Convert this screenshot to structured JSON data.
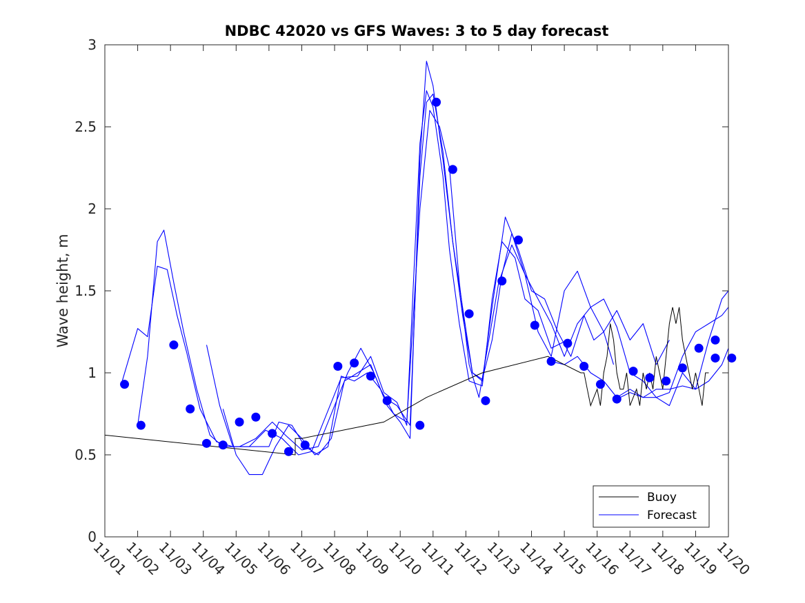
{
  "chart_data": {
    "type": "line",
    "title": "NDBC 42020 vs GFS Waves: 3 to 5 day forecast",
    "xlabel": "",
    "ylabel": "Wave height, m",
    "xlim": [
      0,
      19
    ],
    "ylim": [
      0,
      3
    ],
    "x_tick_values": [
      0,
      1,
      2,
      3,
      4,
      5,
      6,
      7,
      8,
      9,
      10,
      11,
      12,
      13,
      14,
      15,
      16,
      17,
      18,
      19
    ],
    "x_tick_labels": [
      "11/01",
      "11/02",
      "11/03",
      "11/04",
      "11/05",
      "11/06",
      "11/07",
      "11/08",
      "11/09",
      "11/10",
      "11/11",
      "11/12",
      "11/13",
      "11/14",
      "11/15",
      "11/16",
      "11/17",
      "11/18",
      "11/19",
      "11/20"
    ],
    "y_tick_values": [
      0,
      0.5,
      1,
      1.5,
      2,
      2.5,
      3
    ],
    "y_tick_labels": [
      "0",
      "0.5",
      "1",
      "1.5",
      "2",
      "2.5",
      "3"
    ],
    "legend": {
      "position": "bottom-right",
      "entries": [
        {
          "label": "Buoy",
          "color": "#000000"
        },
        {
          "label": "Forecast",
          "color": "#0000ff"
        }
      ]
    },
    "colors": {
      "buoy": "#000000",
      "forecast": "#0000ff",
      "axes": "#262626"
    },
    "buoy": {
      "x": [
        0,
        5.8,
        5.8,
        6.0,
        6.0,
        7.5,
        8.5,
        9.8,
        11.5,
        13.5,
        14.5,
        14.6,
        14.7,
        14.8,
        14.9,
        15.0,
        15.1,
        15.2,
        15.3,
        15.4,
        15.5,
        15.6,
        15.7,
        15.8,
        15.9,
        16.0,
        16.1,
        16.2,
        16.3,
        16.4,
        16.5,
        16.6,
        16.7,
        16.8,
        16.9,
        17.0,
        17.1,
        17.2,
        17.3,
        17.4,
        17.5,
        17.6,
        17.7,
        17.8,
        17.9,
        18.0,
        18.1,
        18.2,
        18.3,
        18.4
      ],
      "y": [
        0.62,
        0.5,
        0.6,
        0.6,
        0.6,
        0.66,
        0.7,
        0.85,
        1.0,
        1.1,
        1.0,
        1.0,
        0.9,
        0.8,
        0.85,
        0.9,
        0.8,
        1.0,
        1.1,
        1.3,
        1.2,
        1.0,
        0.9,
        0.9,
        1.0,
        0.8,
        0.85,
        0.9,
        0.8,
        1.0,
        0.9,
        1.0,
        0.9,
        1.1,
        1.0,
        0.9,
        1.1,
        1.3,
        1.4,
        1.3,
        1.4,
        1.2,
        1.1,
        1.0,
        0.9,
        1.0,
        0.9,
        0.8,
        1.0,
        1.0
      ]
    },
    "forecast_series": [
      {
        "name": "forecast-1",
        "x": [
          0.5,
          1.0,
          1.3,
          1.6,
          1.9,
          2.2,
          2.5,
          2.9,
          3.4,
          3.9,
          4.4,
          4.9,
          5.4,
          5.9,
          6.3,
          6.7,
          7.2,
          7.7,
          8.1,
          8.5,
          8.9,
          9.2,
          9.6,
          9.8,
          10.0,
          10.3,
          10.5,
          10.8,
          11.1,
          11.5,
          11.8,
          12.1,
          12.5,
          12.8,
          13.2,
          13.6,
          14.1
        ],
        "y": [
          0.93,
          1.27,
          1.22,
          1.65,
          1.63,
          1.35,
          1.12,
          0.78,
          0.58,
          0.55,
          0.55,
          0.65,
          0.6,
          0.5,
          0.52,
          0.72,
          0.97,
          0.98,
          1.1,
          0.88,
          0.82,
          0.68,
          2.4,
          2.72,
          2.62,
          2.2,
          1.75,
          1.3,
          0.95,
          0.92,
          1.45,
          1.8,
          1.7,
          1.45,
          1.38,
          1.15,
          1.2
        ]
      },
      {
        "name": "forecast-2",
        "x": [
          1.0,
          1.3,
          1.6,
          1.8,
          2.1,
          2.4,
          2.8,
          3.2,
          3.6,
          4.1,
          4.6,
          5.1,
          5.5,
          6.0,
          6.5,
          7.0,
          7.4,
          7.8,
          8.2,
          8.6,
          9.0,
          9.3,
          9.6,
          9.8,
          10.0,
          10.3,
          10.6,
          10.9,
          11.2,
          11.5,
          11.8,
          12.2,
          12.6,
          13.0,
          13.4,
          13.8,
          14.2,
          14.6,
          14.9,
          15.2,
          15.5
        ],
        "y": [
          0.68,
          1.1,
          1.8,
          1.87,
          1.55,
          1.25,
          0.9,
          0.62,
          0.55,
          0.55,
          0.6,
          0.7,
          0.62,
          0.53,
          0.55,
          0.8,
          1.0,
          1.15,
          1.0,
          0.8,
          0.7,
          0.6,
          2.3,
          2.9,
          2.75,
          2.3,
          1.8,
          1.35,
          1.0,
          0.95,
          1.4,
          1.95,
          1.75,
          1.5,
          1.45,
          1.25,
          1.1,
          1.35,
          1.2,
          1.25,
          1.05
        ]
      },
      {
        "name": "forecast-3",
        "x": [
          3.1,
          3.5,
          3.9,
          4.3,
          4.7,
          5.0,
          5.3,
          5.7,
          6.1,
          6.5,
          6.9,
          7.3,
          7.7,
          8.1,
          8.5,
          8.9,
          9.3,
          9.6,
          9.8,
          10.0,
          10.3,
          10.6,
          10.9,
          11.2,
          11.5,
          11.8,
          12.1,
          12.4,
          12.8,
          13.2,
          13.6,
          14.0,
          14.4,
          14.8,
          15.2,
          15.6,
          16.0,
          16.4,
          16.8,
          17.2
        ],
        "y": [
          1.17,
          0.8,
          0.55,
          0.55,
          0.55,
          0.55,
          0.7,
          0.68,
          0.55,
          0.5,
          0.6,
          0.95,
          1.0,
          1.05,
          0.85,
          0.8,
          0.68,
          2.2,
          2.65,
          2.7,
          2.35,
          1.8,
          1.4,
          1.0,
          0.96,
          1.2,
          1.6,
          1.85,
          1.6,
          1.45,
          1.3,
          1.1,
          1.3,
          1.4,
          1.25,
          1.38,
          1.2,
          1.3,
          1.05,
          1.2
        ]
      },
      {
        "name": "forecast-4",
        "x": [
          3.6,
          4.0,
          4.4,
          4.8,
          5.2,
          5.6,
          6.0,
          6.4,
          6.8,
          7.2,
          7.6,
          8.0,
          8.4,
          8.8,
          9.2,
          9.6,
          9.9,
          10.2,
          10.5,
          10.8,
          11.1,
          11.4,
          11.7,
          12.0,
          12.4,
          12.8,
          13.2,
          13.6,
          14.0,
          14.4,
          14.8,
          15.2,
          15.6,
          16.0,
          16.4,
          16.8,
          17.2,
          17.6,
          18.0,
          18.4,
          18.8,
          19.0
        ],
        "y": [
          0.78,
          0.5,
          0.38,
          0.38,
          0.55,
          0.68,
          0.6,
          0.5,
          0.55,
          0.98,
          0.95,
          1.0,
          0.9,
          0.75,
          0.7,
          2.0,
          2.6,
          2.5,
          2.25,
          1.55,
          1.05,
          0.85,
          1.2,
          1.55,
          1.78,
          1.6,
          1.25,
          1.1,
          1.5,
          1.62,
          1.4,
          1.45,
          1.28,
          1.0,
          0.95,
          0.85,
          0.8,
          1.0,
          0.9,
          1.2,
          1.45,
          1.5
        ]
      },
      {
        "name": "forecast-5",
        "x": [
          15.6,
          16.0,
          16.4,
          16.8,
          17.2,
          17.6,
          18.0,
          18.4,
          18.8,
          19.0
        ],
        "y": [
          0.84,
          0.88,
          0.85,
          0.9,
          0.9,
          0.92,
          0.9,
          0.95,
          1.05,
          1.15
        ]
      },
      {
        "name": "forecast-6",
        "x": [
          13.6,
          14.0,
          14.4,
          14.8,
          15.2,
          15.6,
          16.0,
          16.4,
          16.8,
          17.2,
          17.6,
          18.0,
          18.4,
          18.8,
          19.0
        ],
        "y": [
          1.07,
          1.05,
          1.1,
          1.0,
          0.95,
          0.85,
          0.9,
          0.85,
          0.85,
          0.88,
          1.1,
          1.25,
          1.3,
          1.35,
          1.4
        ]
      }
    ],
    "forecast_markers": {
      "x": [
        0.6,
        1.1,
        2.1,
        2.6,
        3.1,
        3.6,
        4.1,
        4.6,
        5.1,
        5.6,
        6.1,
        7.1,
        7.6,
        8.1,
        8.6,
        9.6,
        10.1,
        10.6,
        11.1,
        11.6,
        12.1,
        12.6,
        13.1,
        13.6,
        14.1,
        14.6,
        15.1,
        15.6,
        16.1,
        16.6,
        17.1,
        17.6,
        18.1,
        18.6
      ],
      "y": [
        0.93,
        0.68,
        1.17,
        0.78,
        0.57,
        0.56,
        0.7,
        0.73,
        0.63,
        0.52,
        0.56,
        1.04,
        1.06,
        0.98,
        0.83,
        0.68,
        2.65,
        2.24,
        1.36,
        0.83,
        1.56,
        1.81,
        1.29,
        1.07,
        1.18,
        1.04,
        0.93,
        0.84,
        1.01,
        0.97,
        0.95,
        1.03,
        1.15,
        1.09
      ]
    },
    "extra_markers": {
      "x": [
        18.1,
        18.6
      ],
      "y": [
        1.2,
        1.09
      ]
    }
  }
}
